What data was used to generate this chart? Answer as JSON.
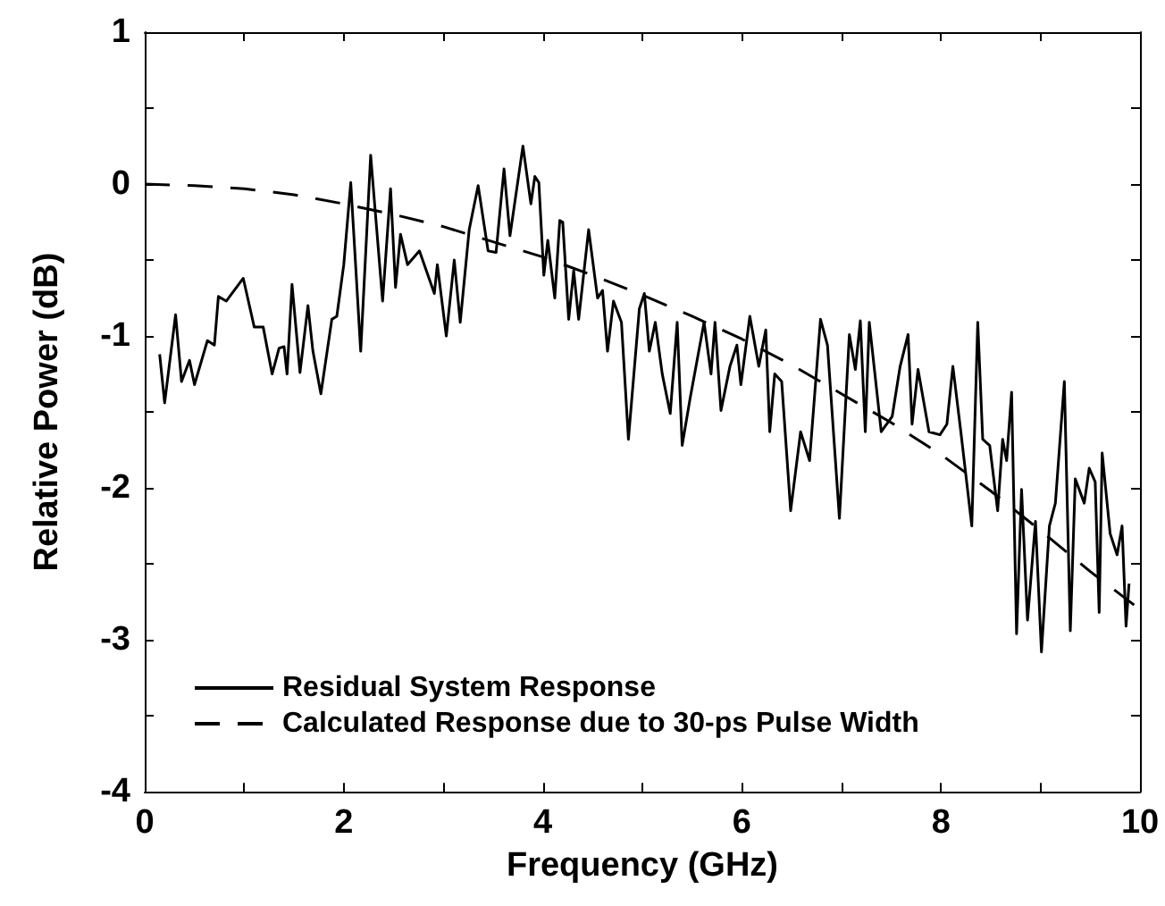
{
  "chart_data": {
    "type": "line",
    "xlabel": "Frequency (GHz)",
    "ylabel": "Relative Power (dB)",
    "xlim": [
      0,
      10
    ],
    "xticks": [
      0,
      {
        "value": 1,
        "label": null
      },
      2,
      {
        "value": 3,
        "label": null
      },
      4,
      {
        "value": 5,
        "label": null
      },
      6,
      {
        "value": 7,
        "label": null
      },
      8,
      {
        "value": 9,
        "label": null
      },
      10
    ],
    "ylim": [
      -4,
      1
    ],
    "yticks": [
      -4,
      {
        "value": -3.5,
        "label": null
      },
      -3,
      {
        "value": -2.5,
        "label": null
      },
      -2,
      {
        "value": -1.5,
        "label": null
      },
      -1,
      {
        "value": -0.5,
        "label": null
      },
      0,
      {
        "value": 0.5,
        "label": null
      },
      1
    ],
    "grid": false,
    "legend": "bottom left",
    "marker": "none",
    "series": [
      {
        "name": "Residual System Response",
        "color": "#000000",
        "line_style": "solid",
        "x": [
          0.15,
          0.2,
          0.31,
          0.37,
          0.45,
          0.5,
          0.63,
          0.7,
          0.74,
          0.82,
          0.99,
          1.1,
          1.19,
          1.28,
          1.35,
          1.4,
          1.43,
          1.48,
          1.56,
          1.64,
          1.69,
          1.77,
          1.88,
          1.93,
          2.0,
          2.07,
          2.17,
          2.27,
          2.39,
          2.47,
          2.52,
          2.57,
          2.64,
          2.76,
          2.91,
          2.94,
          3.03,
          3.11,
          3.17,
          3.26,
          3.35,
          3.45,
          3.53,
          3.61,
          3.67,
          3.8,
          3.88,
          3.92,
          3.96,
          4.01,
          4.05,
          4.12,
          4.17,
          4.2,
          4.26,
          4.31,
          4.36,
          4.46,
          4.55,
          4.6,
          4.65,
          4.71,
          4.79,
          4.86,
          4.97,
          5.02,
          5.07,
          5.13,
          5.2,
          5.28,
          5.35,
          5.4,
          5.48,
          5.62,
          5.69,
          5.73,
          5.79,
          5.88,
          5.95,
          5.99,
          6.08,
          6.17,
          6.24,
          6.28,
          6.33,
          6.4,
          6.49,
          6.59,
          6.68,
          6.79,
          6.86,
          6.98,
          7.08,
          7.14,
          7.19,
          7.24,
          7.28,
          7.4,
          7.51,
          7.59,
          7.67,
          7.71,
          7.77,
          7.88,
          7.99,
          8.06,
          8.12,
          8.2,
          8.31,
          8.37,
          8.42,
          8.49,
          8.57,
          8.62,
          8.66,
          8.71,
          8.76,
          8.81,
          8.87,
          8.95,
          9.01,
          9.09,
          9.15,
          9.24,
          9.3,
          9.35,
          9.44,
          9.49,
          9.55,
          9.59,
          9.62,
          9.7,
          9.77,
          9.82,
          9.86,
          9.89
        ],
        "values": [
          -1.12,
          -1.44,
          -0.86,
          -1.3,
          -1.16,
          -1.32,
          -1.03,
          -1.06,
          -0.74,
          -0.77,
          -0.62,
          -0.94,
          -0.94,
          -1.25,
          -1.08,
          -1.07,
          -1.25,
          -0.66,
          -1.24,
          -0.8,
          -1.1,
          -1.38,
          -0.89,
          -0.87,
          -0.53,
          0.01,
          -1.1,
          0.19,
          -0.77,
          -0.03,
          -0.68,
          -0.33,
          -0.53,
          -0.44,
          -0.72,
          -0.53,
          -1.0,
          -0.5,
          -0.91,
          -0.3,
          -0.01,
          -0.44,
          -0.45,
          0.1,
          -0.34,
          0.25,
          -0.13,
          0.05,
          0.01,
          -0.6,
          -0.37,
          -0.75,
          -0.24,
          -0.25,
          -0.89,
          -0.57,
          -0.89,
          -0.3,
          -0.75,
          -0.7,
          -1.1,
          -0.77,
          -0.91,
          -1.68,
          -0.82,
          -0.72,
          -1.1,
          -0.91,
          -1.25,
          -1.51,
          -0.91,
          -1.72,
          -1.41,
          -0.91,
          -1.25,
          -0.91,
          -1.49,
          -1.2,
          -1.06,
          -1.32,
          -0.87,
          -1.2,
          -0.96,
          -1.63,
          -1.25,
          -1.3,
          -2.15,
          -1.63,
          -1.82,
          -0.89,
          -1.06,
          -2.2,
          -0.99,
          -1.22,
          -0.9,
          -1.63,
          -0.91,
          -1.63,
          -1.53,
          -1.2,
          -0.99,
          -1.58,
          -1.22,
          -1.63,
          -1.65,
          -1.58,
          -1.2,
          -1.63,
          -2.25,
          -0.91,
          -1.68,
          -1.72,
          -2.15,
          -1.68,
          -1.82,
          -1.37,
          -2.96,
          -2.01,
          -2.87,
          -2.22,
          -3.08,
          -2.25,
          -2.1,
          -1.3,
          -2.94,
          -1.94,
          -2.1,
          -1.87,
          -1.96,
          -2.82,
          -1.77,
          -2.3,
          -2.44,
          -2.25,
          -2.91,
          -2.63
        ]
      },
      {
        "name": "Calculated Response due to 30-ps Pulse Width",
        "color": "#000000",
        "line_style": "dashed",
        "x": [
          0,
          0.5,
          1,
          1.5,
          2,
          2.5,
          3,
          3.5,
          4,
          4.5,
          5,
          5.5,
          6,
          6.5,
          7,
          7.5,
          8,
          8.5,
          9,
          9.5,
          10
        ],
        "values": [
          0,
          -0.01,
          -0.03,
          -0.07,
          -0.13,
          -0.2,
          -0.28,
          -0.38,
          -0.48,
          -0.6,
          -0.73,
          -0.87,
          -1.02,
          -1.19,
          -1.38,
          -1.57,
          -1.78,
          -2.02,
          -2.28,
          -2.55,
          -2.8
        ]
      }
    ]
  }
}
